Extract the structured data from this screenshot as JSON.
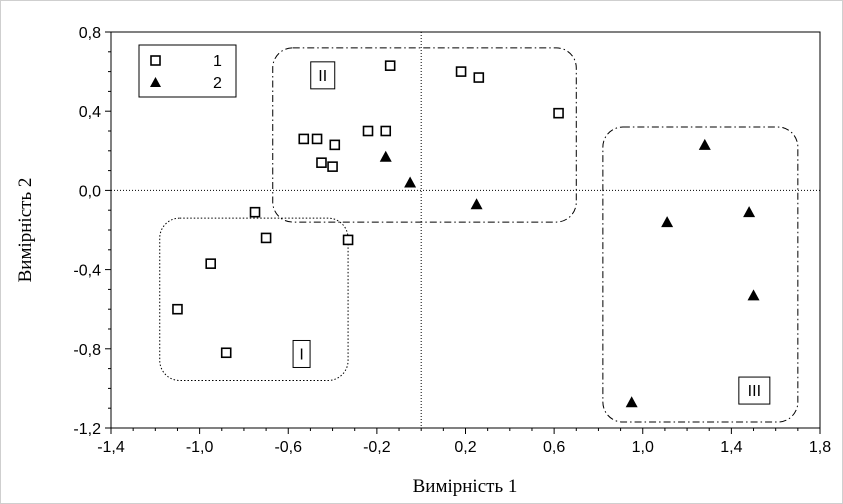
{
  "chart_data": {
    "type": "scatter",
    "xlabel": "Вимірність 1",
    "ylabel": "Вимірність 2",
    "xlim": [
      -1.4,
      1.8
    ],
    "ylim": [
      -1.2,
      0.8
    ],
    "x_ticks": [
      "-1,4",
      "-1,0",
      "-0,6",
      "-0,2",
      "0,2",
      "0,6",
      "1,0",
      "1,4",
      "1,8"
    ],
    "y_ticks": [
      "0,8",
      "0,4",
      "0,0",
      "-0,4",
      "-0,8",
      "-1,2"
    ],
    "reference_lines": {
      "x": 0.0,
      "y": 0.0
    },
    "legend": {
      "position": "top-left"
    },
    "series": [
      {
        "name": "1",
        "marker": "open-square",
        "color": "#000000",
        "points": [
          {
            "x": -1.1,
            "y": -0.6
          },
          {
            "x": -0.95,
            "y": -0.37
          },
          {
            "x": -0.88,
            "y": -0.82
          },
          {
            "x": -0.75,
            "y": -0.11
          },
          {
            "x": -0.7,
            "y": -0.24
          },
          {
            "x": -0.53,
            "y": 0.26
          },
          {
            "x": -0.47,
            "y": 0.26
          },
          {
            "x": -0.45,
            "y": 0.14
          },
          {
            "x": -0.4,
            "y": 0.12
          },
          {
            "x": -0.39,
            "y": 0.23
          },
          {
            "x": -0.33,
            "y": -0.25
          },
          {
            "x": -0.24,
            "y": 0.3
          },
          {
            "x": -0.16,
            "y": 0.3
          },
          {
            "x": -0.14,
            "y": 0.63
          },
          {
            "x": 0.18,
            "y": 0.6
          },
          {
            "x": 0.26,
            "y": 0.57
          },
          {
            "x": 0.62,
            "y": 0.39
          }
        ]
      },
      {
        "name": "2",
        "marker": "filled-triangle",
        "color": "#000000",
        "points": [
          {
            "x": -0.16,
            "y": 0.17
          },
          {
            "x": -0.05,
            "y": 0.04
          },
          {
            "x": 0.25,
            "y": -0.07
          },
          {
            "x": 0.95,
            "y": -1.07
          },
          {
            "x": 1.11,
            "y": -0.16
          },
          {
            "x": 1.28,
            "y": 0.23
          },
          {
            "x": 1.48,
            "y": -0.11
          },
          {
            "x": 1.5,
            "y": -0.53
          }
        ]
      }
    ],
    "regions": [
      {
        "label": "I",
        "x": [
          -1.18,
          -0.33
        ],
        "y": [
          -0.96,
          -0.14
        ],
        "style": "dotted"
      },
      {
        "label": "II",
        "x": [
          -0.67,
          0.7
        ],
        "y": [
          -0.16,
          0.72
        ],
        "style": "dash-dot"
      },
      {
        "label": "III",
        "x": [
          0.82,
          1.7
        ],
        "y": [
          -1.17,
          0.32
        ],
        "style": "dash-dot"
      }
    ]
  }
}
